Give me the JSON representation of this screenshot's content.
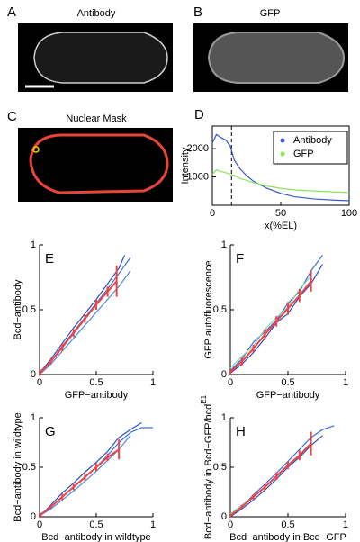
{
  "images": [
    {
      "panel": "A",
      "title": "Antibody"
    },
    {
      "panel": "B",
      "title": "GFP"
    },
    {
      "panel": "C",
      "title": "Nuclear Mask"
    }
  ],
  "chart_data": [
    {
      "panel": "D",
      "type": "line",
      "xlabel": "x(%EL)",
      "ylabel": "Intensity",
      "xlim": [
        0,
        100
      ],
      "ylim": [
        0,
        2800
      ],
      "xticks": [
        0,
        50,
        100
      ],
      "yticks": [
        1000,
        2000
      ],
      "vline": 14,
      "legend": "upper right",
      "x": [
        0,
        3,
        6,
        10,
        13,
        16,
        20,
        25,
        30,
        40,
        50,
        60,
        75,
        90,
        100
      ],
      "series": [
        {
          "name": "Antibody",
          "color": "#3a55d0",
          "values": [
            2200,
            2500,
            2400,
            2300,
            2100,
            1600,
            1300,
            1050,
            850,
            600,
            420,
            300,
            220,
            180,
            160
          ]
        },
        {
          "name": "GFP",
          "color": "#8fe060",
          "values": [
            1100,
            1250,
            1200,
            1150,
            1100,
            1050,
            950,
            880,
            800,
            680,
            600,
            540,
            500,
            470,
            450
          ]
        }
      ]
    },
    {
      "panel": "E",
      "type": "line",
      "xlabel": "GFP−antibody",
      "ylabel": "Bcd−antibody",
      "xlim": [
        0,
        1
      ],
      "ylim": [
        0,
        1
      ],
      "xticks": [
        0,
        0.5,
        1
      ],
      "yticks": [
        0,
        0.5,
        1
      ],
      "series": [
        {
          "color": "#3b6fd8",
          "x": [
            0,
            0.1,
            0.2,
            0.3,
            0.4,
            0.5,
            0.6,
            0.7,
            0.8
          ],
          "values": [
            0.02,
            0.1,
            0.22,
            0.33,
            0.44,
            0.55,
            0.66,
            0.78,
            0.9
          ]
        },
        {
          "color": "#4a8ae0",
          "x": [
            0,
            0.1,
            0.2,
            0.3,
            0.4,
            0.5,
            0.6,
            0.7,
            0.8
          ],
          "values": [
            0,
            0.08,
            0.18,
            0.28,
            0.38,
            0.48,
            0.58,
            0.68,
            0.8
          ]
        },
        {
          "color": "#2a4fc0",
          "x": [
            0,
            0.1,
            0.2,
            0.3,
            0.4,
            0.5,
            0.6,
            0.7,
            0.75
          ],
          "values": [
            0.01,
            0.12,
            0.24,
            0.36,
            0.47,
            0.58,
            0.7,
            0.82,
            0.92
          ]
        },
        {
          "color": "#ee4444",
          "x": [
            0,
            0.1,
            0.2,
            0.3,
            0.4,
            0.5,
            0.6,
            0.68
          ],
          "values": [
            0.01,
            0.1,
            0.21,
            0.32,
            0.43,
            0.54,
            0.64,
            0.72
          ],
          "errors": [
            0.02,
            0.02,
            0.03,
            0.03,
            0.03,
            0.04,
            0.04,
            0.12
          ]
        }
      ]
    },
    {
      "panel": "F",
      "type": "line",
      "xlabel": "GFP−antibody",
      "ylabel": "GFP autofluorescence",
      "xlim": [
        0,
        1
      ],
      "ylim": [
        0,
        1
      ],
      "xticks": [
        0,
        0.5,
        1
      ],
      "yticks": [
        0,
        0.5,
        1
      ],
      "series": [
        {
          "color": "#3b6fd8",
          "x": [
            0,
            0.1,
            0.2,
            0.3,
            0.4,
            0.5,
            0.6,
            0.7,
            0.8
          ],
          "values": [
            0.03,
            0.12,
            0.25,
            0.33,
            0.42,
            0.55,
            0.64,
            0.8,
            0.92
          ]
        },
        {
          "color": "#2a4fc0",
          "x": [
            0,
            0.1,
            0.2,
            0.3,
            0.4,
            0.5,
            0.6,
            0.7,
            0.8
          ],
          "values": [
            0.01,
            0.08,
            0.17,
            0.28,
            0.4,
            0.47,
            0.6,
            0.7,
            0.85
          ]
        },
        {
          "color": "#7fd8b0",
          "x": [
            0,
            0.1,
            0.2,
            0.3,
            0.4,
            0.5,
            0.6,
            0.7
          ],
          "values": [
            0.05,
            0.14,
            0.22,
            0.35,
            0.44,
            0.52,
            0.66,
            0.76
          ]
        },
        {
          "color": "#ee4444",
          "x": [
            0,
            0.1,
            0.2,
            0.3,
            0.4,
            0.5,
            0.6,
            0.7
          ],
          "values": [
            0.02,
            0.1,
            0.2,
            0.31,
            0.41,
            0.51,
            0.61,
            0.72
          ],
          "errors": [
            0.02,
            0.03,
            0.03,
            0.04,
            0.04,
            0.05,
            0.05,
            0.08
          ]
        }
      ]
    },
    {
      "panel": "G",
      "type": "line",
      "xlabel": "Bcd−antibody in wildtype",
      "ylabel": "Bcd−antibody in wildtype",
      "xlim": [
        0,
        1
      ],
      "ylim": [
        0,
        1
      ],
      "xticks": [
        0,
        0.5,
        1
      ],
      "yticks": [
        0,
        0.5,
        1
      ],
      "series": [
        {
          "color": "#3b6fd8",
          "x": [
            0,
            0.1,
            0.2,
            0.3,
            0.4,
            0.5,
            0.6,
            0.7,
            0.8,
            0.9,
            1
          ],
          "values": [
            0.02,
            0.1,
            0.2,
            0.3,
            0.4,
            0.5,
            0.62,
            0.75,
            0.85,
            0.9,
            0.9
          ]
        },
        {
          "color": "#2a4fc0",
          "x": [
            0,
            0.1,
            0.2,
            0.3,
            0.4,
            0.5,
            0.6,
            0.7,
            0.8,
            0.9
          ],
          "values": [
            0,
            0.12,
            0.24,
            0.34,
            0.45,
            0.55,
            0.66,
            0.8,
            0.88,
            0.95
          ]
        },
        {
          "color": "#4a8ae0",
          "x": [
            0,
            0.1,
            0.2,
            0.3,
            0.4,
            0.5,
            0.6,
            0.7,
            0.8
          ],
          "values": [
            0.01,
            0.08,
            0.17,
            0.26,
            0.36,
            0.46,
            0.57,
            0.68,
            0.82
          ]
        },
        {
          "color": "#ee4444",
          "x": [
            0,
            0.1,
            0.2,
            0.3,
            0.4,
            0.5,
            0.6,
            0.7
          ],
          "values": [
            0.01,
            0.1,
            0.2,
            0.3,
            0.4,
            0.5,
            0.6,
            0.68
          ],
          "errors": [
            0.02,
            0.02,
            0.03,
            0.03,
            0.03,
            0.04,
            0.04,
            0.1
          ]
        }
      ]
    },
    {
      "panel": "H",
      "type": "line",
      "xlabel": "Bcd−antibody in Bcd−GFP",
      "ylabel": "Bcd−antibody in Bcd−GFP/bcd",
      "ylabel_sup": "E1",
      "xlim": [
        0,
        1
      ],
      "ylim": [
        0,
        1
      ],
      "xticks": [
        0,
        0.5,
        1
      ],
      "yticks": [
        0,
        0.5,
        1
      ],
      "series": [
        {
          "color": "#3b6fd8",
          "x": [
            0,
            0.1,
            0.2,
            0.3,
            0.4,
            0.5,
            0.6,
            0.7,
            0.8,
            0.9
          ],
          "values": [
            0.02,
            0.1,
            0.22,
            0.33,
            0.44,
            0.56,
            0.68,
            0.8,
            0.88,
            0.92
          ]
        },
        {
          "color": "#2a4fc0",
          "x": [
            0,
            0.1,
            0.2,
            0.3,
            0.4,
            0.5,
            0.6,
            0.7,
            0.8
          ],
          "values": [
            0,
            0.08,
            0.17,
            0.27,
            0.38,
            0.5,
            0.6,
            0.72,
            0.82
          ]
        },
        {
          "color": "#7fd8b0",
          "x": [
            0,
            0.1,
            0.2,
            0.3,
            0.4,
            0.5,
            0.6,
            0.7
          ],
          "values": [
            0.03,
            0.12,
            0.2,
            0.3,
            0.4,
            0.52,
            0.62,
            0.74
          ]
        },
        {
          "color": "#ee4444",
          "x": [
            0,
            0.1,
            0.2,
            0.3,
            0.4,
            0.5,
            0.6,
            0.7
          ],
          "values": [
            0.01,
            0.1,
            0.2,
            0.3,
            0.41,
            0.52,
            0.62,
            0.74
          ],
          "errors": [
            0.02,
            0.02,
            0.03,
            0.03,
            0.04,
            0.04,
            0.05,
            0.12
          ]
        }
      ]
    }
  ]
}
